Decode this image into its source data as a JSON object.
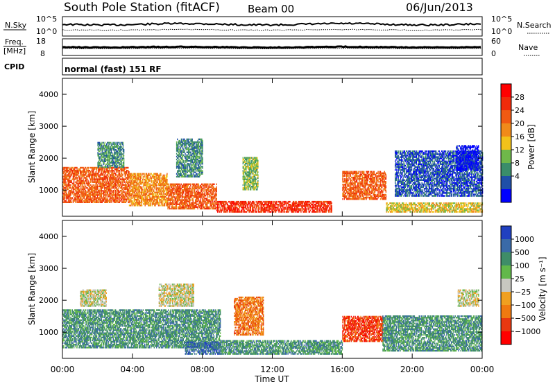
{
  "header": {
    "station": "South Pole Station (fitACF)",
    "beam": "Beam 00",
    "date": "06/Jun/2013"
  },
  "strip_nsky": {
    "label": "N.Sky",
    "left_ticks": [
      "10^5",
      "10^0"
    ],
    "right_ticks": [
      "10^5",
      "10^0"
    ],
    "right_label": "N.Search"
  },
  "strip_freq": {
    "label_line1": "Freq.",
    "label_line2": "[MHz]",
    "left_ticks": [
      "18",
      "8"
    ],
    "right_ticks": [
      "60",
      "0"
    ],
    "right_label": "Nave"
  },
  "cpid": {
    "label": "CPID",
    "value": "normal (fast) 151 RF"
  },
  "colors": {
    "power": [
      "#0000ff",
      "#1f4fa8",
      "#3a8d6a",
      "#6fb84a",
      "#f2c21a",
      "#f08a1a",
      "#f05a12",
      "#f02a0a",
      "#ff0000"
    ],
    "velocity": [
      "#2040c0",
      "#3a6aa8",
      "#3f8d68",
      "#62b84a",
      "#c8c8c0",
      "#f0a020",
      "#f07a10",
      "#e83810",
      "#ff0000"
    ]
  },
  "chart_data": [
    {
      "type": "heatmap",
      "ylabel": "Slant Range [km]",
      "ylim": [
        180,
        4500
      ],
      "yticks": [
        1000,
        2000,
        3000,
        4000
      ],
      "xlim": [
        0,
        24
      ],
      "xticks": [
        0,
        4,
        8,
        12,
        16,
        20,
        24
      ],
      "colorbar": {
        "label": "Power [dB]",
        "bounds": [
          0,
          4,
          8,
          12,
          16,
          20,
          24,
          28,
          32
        ],
        "tick_labels": [
          "4",
          "8",
          "12",
          "16",
          "20",
          "24",
          "28"
        ]
      },
      "regions": [
        {
          "t0": 0.0,
          "t1": 3.8,
          "r0": 600,
          "r1": 1700,
          "level": 6
        },
        {
          "t0": 3.8,
          "t1": 6.0,
          "r0": 500,
          "r1": 1500,
          "level": 5
        },
        {
          "t0": 6.0,
          "t1": 8.8,
          "r0": 400,
          "r1": 1200,
          "level": 6
        },
        {
          "t0": 8.8,
          "t1": 15.4,
          "r0": 300,
          "r1": 650,
          "level": 7
        },
        {
          "t0": 10.3,
          "t1": 11.2,
          "r0": 1000,
          "r1": 2000,
          "level": 3
        },
        {
          "t0": 2.0,
          "t1": 3.5,
          "r0": 1700,
          "r1": 2500,
          "level": 2
        },
        {
          "t0": 6.5,
          "t1": 8.0,
          "r0": 1400,
          "r1": 2600,
          "level": 2
        },
        {
          "t0": 16.0,
          "t1": 18.5,
          "r0": 700,
          "r1": 1600,
          "level": 6
        },
        {
          "t0": 18.5,
          "t1": 24.0,
          "r0": 300,
          "r1": 600,
          "level": 4
        },
        {
          "t0": 19.0,
          "t1": 24.0,
          "r0": 800,
          "r1": 2200,
          "level": 1
        },
        {
          "t0": 22.5,
          "t1": 23.8,
          "r0": 1600,
          "r1": 2400,
          "level": 0
        }
      ]
    },
    {
      "type": "heatmap",
      "ylabel": "Slant Range [km]",
      "xlabel": "Time UT",
      "ylim": [
        180,
        4500
      ],
      "yticks": [
        1000,
        2000,
        3000,
        4000
      ],
      "xlim": [
        0,
        24
      ],
      "xticks": [
        0,
        4,
        8,
        12,
        16,
        20,
        24
      ],
      "x_tick_labels": [
        "00:00",
        "04:00",
        "08:00",
        "12:00",
        "16:00",
        "20:00",
        "00:00"
      ],
      "colorbar": {
        "label": "Velocity [m s⁻¹]",
        "bounds": [
          -1250,
          -1000,
          -500,
          -100,
          -25,
          25,
          100,
          500,
          1000,
          1250
        ],
        "tick_labels": [
          "1000",
          "500",
          "100",
          "25",
          "−25",
          "−100",
          "−500",
          "−1000"
        ]
      },
      "regions": [
        {
          "t0": 0.0,
          "t1": 9.0,
          "r0": 500,
          "r1": 1700,
          "level": 2
        },
        {
          "t0": 9.0,
          "t1": 16.0,
          "r0": 300,
          "r1": 750,
          "level": 2
        },
        {
          "t0": 9.8,
          "t1": 11.5,
          "r0": 900,
          "r1": 2100,
          "level": 6
        },
        {
          "t0": 1.0,
          "t1": 2.5,
          "r0": 1800,
          "r1": 2300,
          "level": 4
        },
        {
          "t0": 5.5,
          "t1": 7.5,
          "r0": 1800,
          "r1": 2500,
          "level": 4
        },
        {
          "t0": 16.0,
          "t1": 18.3,
          "r0": 700,
          "r1": 1500,
          "level": 7
        },
        {
          "t0": 18.3,
          "t1": 24.0,
          "r0": 400,
          "r1": 1500,
          "level": 2
        },
        {
          "t0": 22.6,
          "t1": 23.8,
          "r0": 1800,
          "r1": 2300,
          "level": 4
        },
        {
          "t0": 7.0,
          "t1": 9.0,
          "r0": 300,
          "r1": 700,
          "level": 1
        }
      ]
    }
  ]
}
